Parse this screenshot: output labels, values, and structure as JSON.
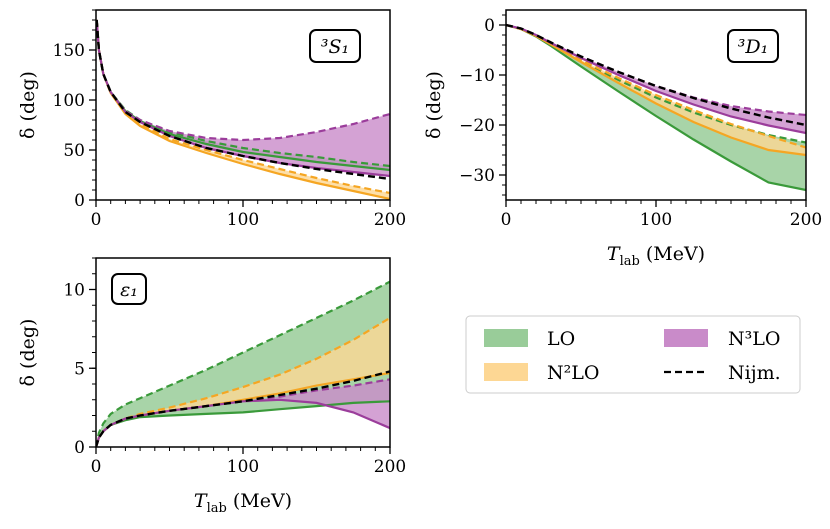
{
  "colors": {
    "LO": "#3a9a3a",
    "LO_fill": "#99cc99",
    "N2LO": "#f5a623",
    "N2LO_fill": "#fdd794",
    "N3LO": "#9b3d9b",
    "N3LO_fill": "#c98bc9",
    "Nijm": "#000000"
  },
  "legend": {
    "items": [
      {
        "key": "LO",
        "label": "LO",
        "kind": "band"
      },
      {
        "key": "N3LO",
        "label": "N³LO",
        "kind": "band"
      },
      {
        "key": "N2LO",
        "label": "N²LO",
        "kind": "band"
      },
      {
        "key": "Nijm",
        "label": "Nijm.",
        "kind": "dashed"
      }
    ]
  },
  "chart_data": [
    {
      "id": "3S1",
      "type": "line",
      "title": "³S₁",
      "xlabel": "",
      "ylabel": "δ (deg)",
      "xlim": [
        0,
        200
      ],
      "ylim": [
        0,
        190
      ],
      "xticks": [
        "0",
        "100",
        "200"
      ],
      "yticks": [
        "0",
        "50",
        "100",
        "150"
      ],
      "x": [
        0.5,
        2,
        5,
        10,
        20,
        30,
        50,
        75,
        100,
        125,
        150,
        175,
        200
      ],
      "series": [
        {
          "name": "Nijm.",
          "style": "dashed",
          "values": [
            180,
            150,
            126,
            108,
            88,
            78,
            64,
            52,
            44,
            37,
            31,
            26,
            21
          ]
        },
        {
          "name": "LO",
          "band": [
            [
              180,
              150,
              126,
              108,
              89,
              79,
              66,
              56,
              48,
              43,
              38,
              34,
              30
            ],
            [
              180,
              150,
              126,
              108,
              90,
              80,
              68,
              59,
              52,
              47,
              43,
              38,
              34
            ]
          ]
        },
        {
          "name": "N2LO",
          "band": [
            [
              180,
              150,
              126,
              107,
              86,
              74,
              59,
              47,
              36,
              26,
              17,
              9,
              1
            ],
            [
              180,
              150,
              126,
              107,
              87,
              76,
              61,
              50,
              40,
              31,
              22,
              14,
              7
            ]
          ]
        },
        {
          "name": "N3LO",
          "band": [
            [
              180,
              150,
              126,
              108,
              88,
              78,
              64,
              52,
              44,
              37,
              32,
              28,
              24
            ],
            [
              180,
              150,
              126,
              108,
              89,
              80,
              69,
              62,
              60,
              62,
              68,
              76,
              86
            ]
          ]
        }
      ]
    },
    {
      "id": "3D1",
      "type": "line",
      "title": "³D₁",
      "xlabel": "T_lab (MeV)",
      "ylabel": "δ (deg)",
      "xlim": [
        0,
        200
      ],
      "ylim": [
        -35,
        3
      ],
      "xticks": [
        "0",
        "100",
        "200"
      ],
      "yticks": [
        "0",
        "−10",
        "−20",
        "−30"
      ],
      "x": [
        0,
        10,
        20,
        30,
        50,
        75,
        100,
        125,
        150,
        175,
        200
      ],
      "series": [
        {
          "name": "Nijm.",
          "style": "dashed",
          "values": [
            0,
            -0.7,
            -2.0,
            -3.5,
            -6.3,
            -9.4,
            -12.2,
            -14.6,
            -16.7,
            -18.5,
            -20.0
          ]
        },
        {
          "name": "LO",
          "band": [
            [
              0,
              -0.8,
              -2.3,
              -4.2,
              -8.3,
              -13.3,
              -18.2,
              -22.9,
              -27.3,
              -31.5,
              -33.0
            ],
            [
              0,
              -0.8,
              -2.2,
              -3.8,
              -7.2,
              -11.0,
              -14.5,
              -17.5,
              -20.0,
              -22.0,
              -23.5
            ]
          ]
        },
        {
          "name": "N2LO",
          "band": [
            [
              0,
              -0.8,
              -2.2,
              -3.9,
              -7.4,
              -11.6,
              -15.7,
              -19.4,
              -22.5,
              -25.0,
              -26.0
            ],
            [
              0,
              -0.8,
              -2.1,
              -3.7,
              -7.0,
              -10.6,
              -14.0,
              -17.0,
              -19.8,
              -22.2,
              -24.5
            ]
          ]
        },
        {
          "name": "N3LO",
          "band": [
            [
              0,
              -0.7,
              -2.0,
              -3.6,
              -6.6,
              -10.0,
              -13.2,
              -15.9,
              -18.3,
              -20.1,
              -21.6
            ],
            [
              0,
              -0.7,
              -2.0,
              -3.5,
              -6.3,
              -9.4,
              -12.2,
              -14.5,
              -16.2,
              -17.3,
              -18.0
            ]
          ]
        }
      ]
    },
    {
      "id": "eps1",
      "type": "line",
      "title": "ε₁",
      "xlabel": "T_lab (MeV)",
      "ylabel": "δ (deg)",
      "xlim": [
        0,
        200
      ],
      "ylim": [
        0,
        12
      ],
      "xticks": [
        "0",
        "100",
        "200"
      ],
      "yticks": [
        "0",
        "5",
        "10"
      ],
      "x": [
        0,
        2,
        5,
        10,
        20,
        30,
        50,
        75,
        100,
        125,
        150,
        175,
        200
      ],
      "series": [
        {
          "name": "Nijm.",
          "style": "dashed",
          "values": [
            0,
            0.6,
            1.0,
            1.4,
            1.8,
            2.0,
            2.3,
            2.6,
            2.9,
            3.3,
            3.7,
            4.2,
            4.8
          ]
        },
        {
          "name": "LO",
          "band": [
            [
              0,
              0.6,
              1.0,
              1.4,
              1.7,
              1.9,
              2.0,
              2.1,
              2.2,
              2.4,
              2.6,
              2.8,
              2.9
            ],
            [
              0,
              0.9,
              1.5,
              2.1,
              2.7,
              3.1,
              3.9,
              4.9,
              6.0,
              7.1,
              8.2,
              9.3,
              10.5
            ]
          ]
        },
        {
          "name": "N2LO",
          "band": [
            [
              0,
              0.6,
              1.0,
              1.4,
              1.8,
              2.0,
              2.3,
              2.6,
              3.0,
              3.4,
              3.9,
              4.3,
              4.7
            ],
            [
              0,
              0.6,
              1.0,
              1.4,
              1.8,
              2.1,
              2.5,
              3.1,
              3.8,
              4.6,
              5.6,
              6.8,
              8.2
            ]
          ]
        },
        {
          "name": "N3LO",
          "band": [
            [
              0,
              0.6,
              1.0,
              1.4,
              1.8,
              2.0,
              2.3,
              2.6,
              2.9,
              3.0,
              2.8,
              2.2,
              1.2
            ],
            [
              0,
              0.6,
              1.0,
              1.4,
              1.8,
              2.0,
              2.3,
              2.6,
              2.9,
              3.2,
              3.6,
              3.9,
              4.3
            ]
          ]
        }
      ]
    }
  ]
}
